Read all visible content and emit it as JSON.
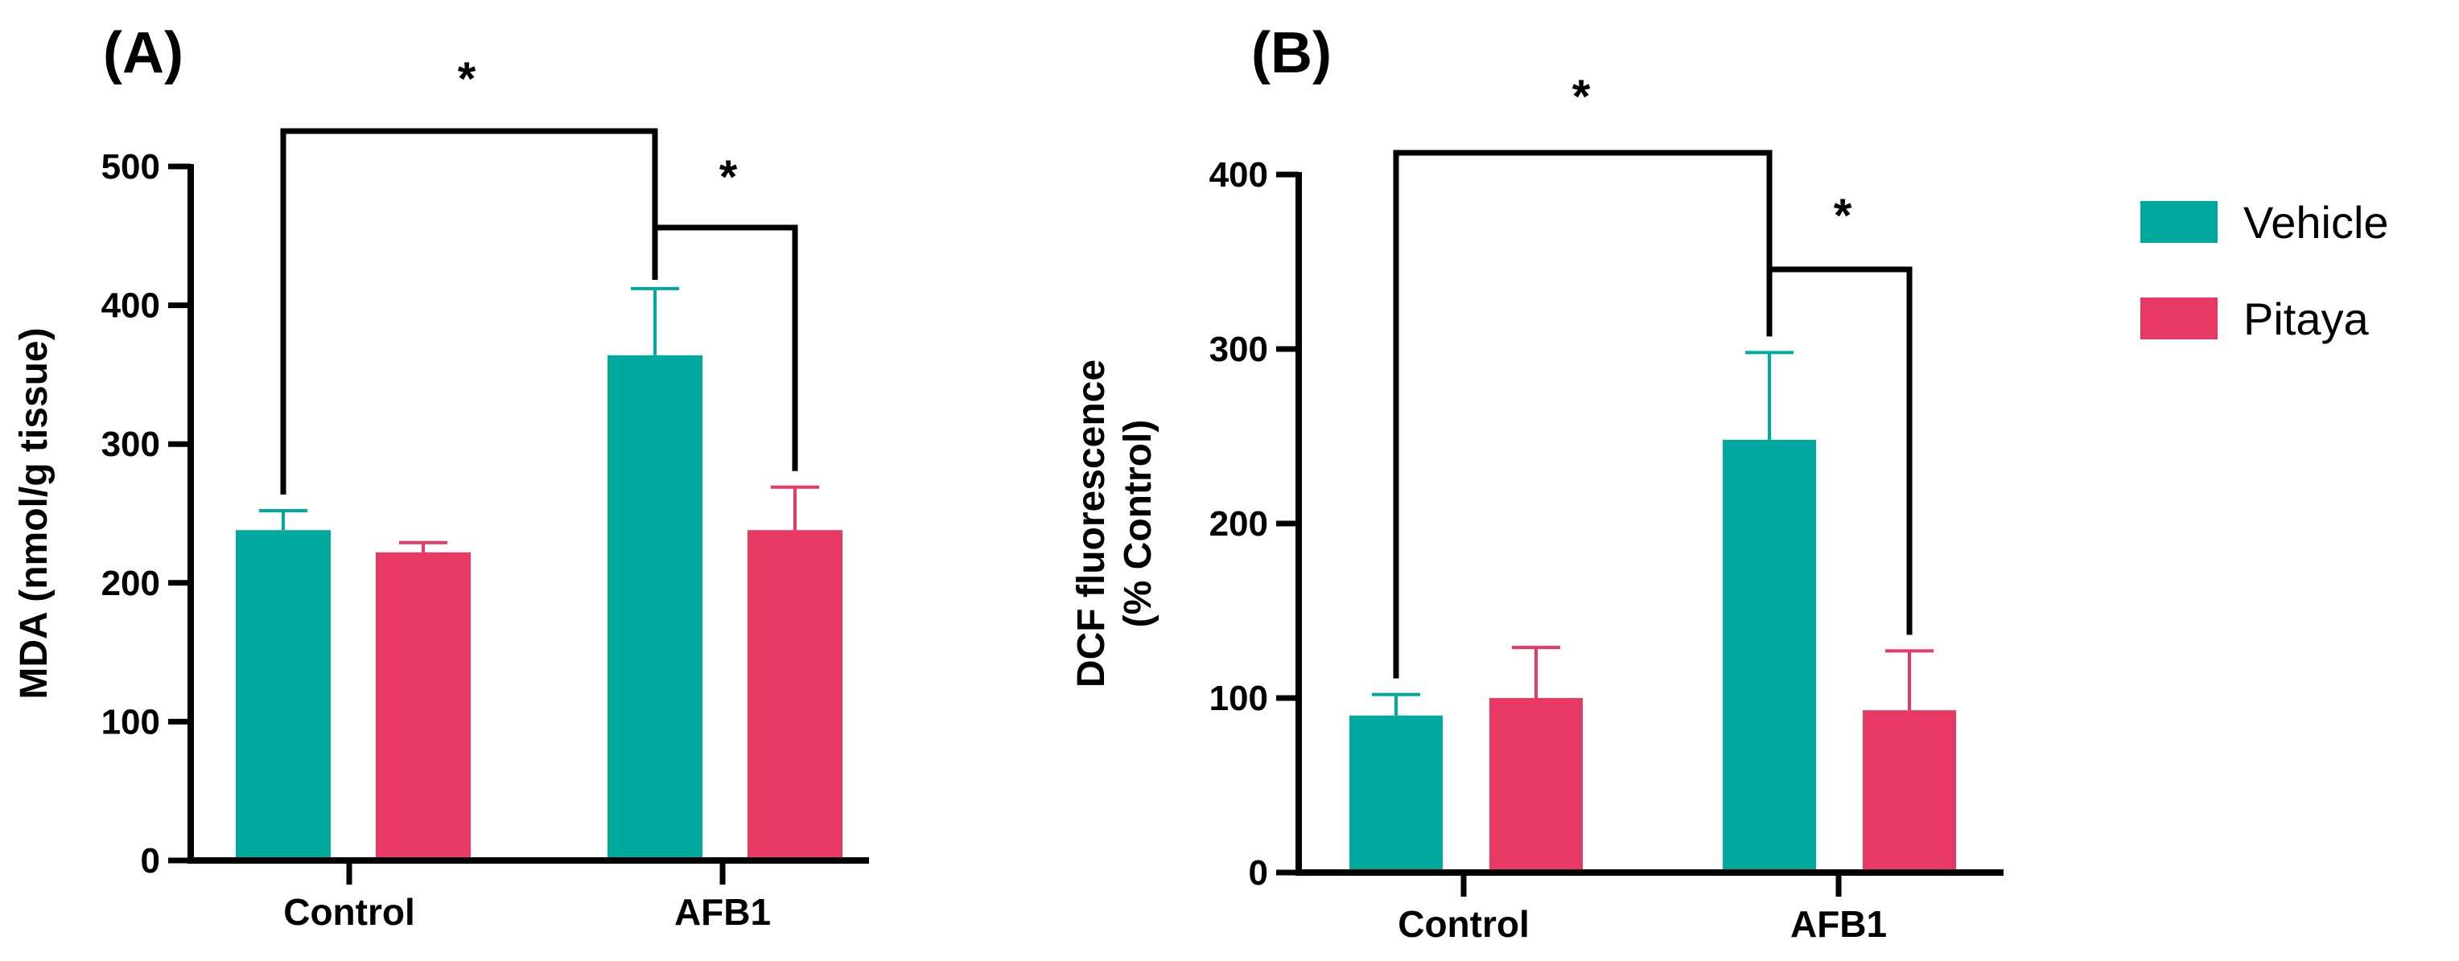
{
  "legend": {
    "items": [
      {
        "label": "Vehicle",
        "color": "#00a99d"
      },
      {
        "label": "Pitaya",
        "color": "#e83864"
      }
    ]
  },
  "chart_data": [
    {
      "panel": "(A)",
      "type": "bar",
      "categories": [
        "Control",
        "AFB1"
      ],
      "series": [
        {
          "name": "Vehicle",
          "color": "#00a99d",
          "values": [
            238,
            364
          ],
          "errors": [
            14,
            48
          ]
        },
        {
          "name": "Pitaya",
          "color": "#e83864",
          "values": [
            222,
            238
          ],
          "errors": [
            7,
            31
          ]
        }
      ],
      "ylabel": "MDA (nmol/g tissue)",
      "xlabel": "",
      "ylim": [
        0,
        500
      ],
      "yticks": [
        0,
        100,
        200,
        300,
        400,
        500
      ],
      "significance": [
        {
          "from": [
            0,
            0
          ],
          "to": [
            1,
            0
          ],
          "label": "*"
        },
        {
          "from": [
            1,
            0
          ],
          "to": [
            1,
            1
          ],
          "label": "*"
        }
      ]
    },
    {
      "panel": "(B)",
      "type": "bar",
      "categories": [
        "Control",
        "AFB1"
      ],
      "series": [
        {
          "name": "Vehicle",
          "color": "#00a99d",
          "values": [
            90,
            248
          ],
          "errors": [
            12,
            50
          ]
        },
        {
          "name": "Pitaya",
          "color": "#e83864",
          "values": [
            100,
            93
          ],
          "errors": [
            29,
            34
          ]
        }
      ],
      "ylabel": [
        "DCF fluorescence",
        "(% Control)"
      ],
      "xlabel": "",
      "ylim": [
        0,
        400
      ],
      "yticks": [
        0,
        100,
        200,
        300,
        400
      ],
      "significance": [
        {
          "from": [
            0,
            0
          ],
          "to": [
            1,
            0
          ],
          "label": "*"
        },
        {
          "from": [
            1,
            0
          ],
          "to": [
            1,
            1
          ],
          "label": "*"
        }
      ]
    }
  ]
}
